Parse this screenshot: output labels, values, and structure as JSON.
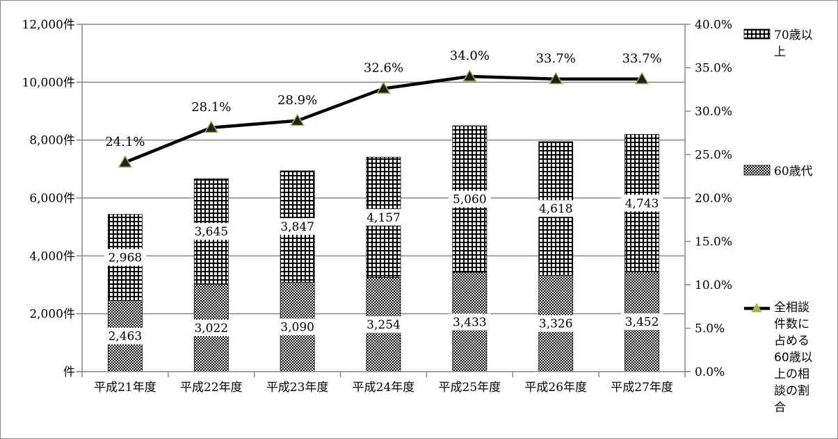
{
  "chart_data": {
    "type": "bar",
    "subtype": "stacked-bar-with-line",
    "categories": [
      "平成21年度",
      "平成22年度",
      "平成23年度",
      "平成24年度",
      "平成25年度",
      "平成26年度",
      "平成27年度"
    ],
    "series": [
      {
        "name": "60歳代",
        "type": "bar",
        "axis": "left",
        "values": [
          2463,
          3022,
          3090,
          3254,
          3433,
          3326,
          3452
        ],
        "labels": [
          "2,463",
          "3,022",
          "3,090",
          "3,254",
          "3,433",
          "3,326",
          "3,452"
        ]
      },
      {
        "name": "70歳以上",
        "type": "bar",
        "axis": "left",
        "values": [
          2968,
          3645,
          3847,
          4157,
          5060,
          4618,
          4743
        ],
        "labels": [
          "2,968",
          "3,645",
          "3,847",
          "4,157",
          "5,060",
          "4,618",
          "4,743"
        ]
      },
      {
        "name": "全相談件数に占める60歳以上の相談の割合",
        "type": "line",
        "axis": "right",
        "values": [
          24.1,
          28.1,
          28.9,
          32.6,
          34.0,
          33.7,
          33.7
        ],
        "labels": [
          "24.1%",
          "28.1%",
          "28.9%",
          "32.6%",
          "34.0%",
          "33.7%",
          "33.7%"
        ]
      }
    ],
    "y_left": {
      "ylim": [
        0,
        12000
      ],
      "ticks": [
        0,
        2000,
        4000,
        6000,
        8000,
        10000,
        12000
      ],
      "tick_labels": [
        "件",
        "2,000件",
        "4,000件",
        "6,000件",
        "8,000件",
        "10,000件",
        "12,000件"
      ]
    },
    "y_right": {
      "ylim": [
        0,
        40
      ],
      "ticks": [
        0,
        5,
        10,
        15,
        20,
        25,
        30,
        35,
        40
      ],
      "tick_labels": [
        "0.0%",
        "5.0%",
        "10.0%",
        "15.0%",
        "20.0%",
        "25.0%",
        "30.0%",
        "35.0%",
        "40.0%"
      ]
    },
    "grid": true,
    "legend_placement": "right",
    "legend": [
      {
        "series": "70歳以上",
        "lines": [
          "70歳以",
          "上"
        ]
      },
      {
        "series": "60歳代",
        "lines": [
          "60歳代"
        ]
      },
      {
        "series": "全相談件数に占める60歳以上の相談の割合",
        "lines": [
          "全相談",
          "件数に",
          "占める",
          "60歳以",
          "上の相",
          "談の割",
          "合"
        ]
      }
    ],
    "colors": {
      "bar": "#000000",
      "line": "#000000",
      "marker_fill": "#1f1f1f",
      "marker_edge": "#9bbb59",
      "grid": "#868686"
    }
  }
}
